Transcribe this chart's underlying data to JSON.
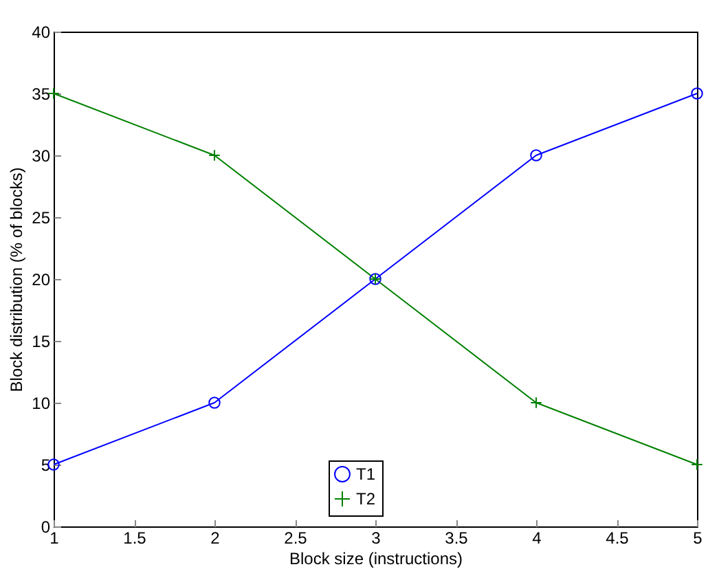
{
  "chart_data": {
    "type": "line",
    "xlabel": "Block size (instructions)",
    "ylabel": "Block distribution (% of blocks)",
    "x": [
      1,
      2,
      3,
      4,
      5
    ],
    "series": [
      {
        "name": "T1",
        "color": "#0000ff",
        "marker": "circle",
        "values": [
          5,
          10,
          20,
          30,
          35
        ]
      },
      {
        "name": "T2",
        "color": "#008000",
        "marker": "cross",
        "values": [
          35,
          30,
          20,
          10,
          5
        ]
      }
    ],
    "xlim": [
      1,
      5
    ],
    "xticks": [
      1,
      1.5,
      2,
      2.5,
      3,
      3.5,
      4,
      4.5,
      5
    ],
    "ylim": [
      0,
      40
    ],
    "yticks": [
      0,
      5,
      10,
      15,
      20,
      25,
      30,
      35,
      40
    ],
    "grid": false,
    "legend": "bottom",
    "line_style": "solid"
  }
}
